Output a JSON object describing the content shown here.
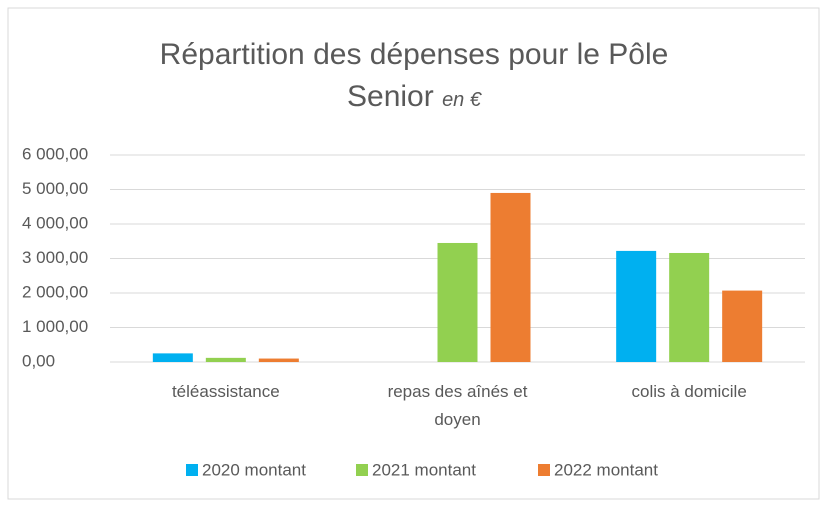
{
  "chart_data": {
    "type": "bar",
    "title": "Répartition des dépenses pour le Pôle Senior",
    "title_unit": "en  €",
    "categories": [
      "téléassistance",
      "repas des aînés et doyen",
      "colis à domicile"
    ],
    "series": [
      {
        "name": "2020 montant",
        "color": "#00b0f0",
        "values": [
          250,
          null,
          3220
        ]
      },
      {
        "name": "2021 montant",
        "color": "#92d050",
        "values": [
          120,
          3450,
          3160
        ]
      },
      {
        "name": "2022 montant",
        "color": "#ed7d31",
        "values": [
          100,
          4900,
          2070
        ]
      }
    ],
    "ylim": [
      0,
      6000
    ],
    "yticks": [
      {
        "value": 0,
        "label": "0,00"
      },
      {
        "value": 1000,
        "label": "1 000,00"
      },
      {
        "value": 2000,
        "label": "2 000,00"
      },
      {
        "value": 3000,
        "label": "3 000,00"
      },
      {
        "value": 4000,
        "label": "4 000,00"
      },
      {
        "value": 5000,
        "label": "5 000,00"
      },
      {
        "value": 6000,
        "label": "6 000,00"
      }
    ],
    "grid": true,
    "legend": "bottom"
  }
}
